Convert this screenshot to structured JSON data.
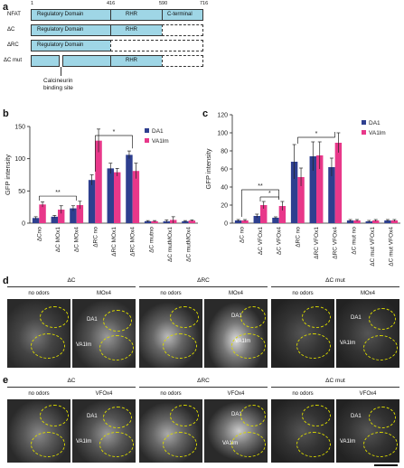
{
  "panels": {
    "a": "a",
    "b": "b",
    "c": "c",
    "d": "d",
    "e": "e"
  },
  "panel_a": {
    "scale": [
      "1",
      "416",
      "590",
      "716"
    ],
    "rows": [
      {
        "label": "NFAT",
        "domains": [
          "Regulatory Domain",
          "RHR",
          "C-terminal"
        ]
      },
      {
        "label": "ΔC",
        "domains": [
          "Regulatory Domain",
          "RHR"
        ]
      },
      {
        "label": "ΔRC",
        "domains": [
          "Regulatory Domain"
        ]
      },
      {
        "label": "ΔC mut",
        "domains": [
          "RHR"
        ]
      }
    ],
    "annotation_line1": "Calcineurin",
    "annotation_line2": "binding site",
    "colors": {
      "domain": "#9fd6e6"
    }
  },
  "chart_data": [
    {
      "panel": "b",
      "type": "bar",
      "ylabel": "GFP intensity",
      "ylim": [
        0,
        150
      ],
      "yticks": [
        0,
        50,
        100,
        150
      ],
      "categories": [
        "ΔCno",
        "ΔC MOx1",
        "ΔC MOx4",
        "ΔRC no",
        "ΔRC MOx1",
        "ΔRC MOx4",
        "ΔC mutno",
        "ΔC mutMOx1",
        "ΔC mutMOx4"
      ],
      "series": [
        {
          "name": "DA1",
          "color": "#2e3f8f",
          "values": [
            8,
            10,
            23,
            67,
            85,
            106,
            3,
            3,
            3
          ],
          "errors": [
            2,
            2,
            4,
            8,
            8,
            6,
            1,
            2,
            1
          ]
        },
        {
          "name": "VA1lm",
          "color": "#e8388a",
          "values": [
            29,
            21,
            28,
            128,
            79,
            81,
            3,
            5,
            4
          ],
          "errors": [
            4,
            6,
            6,
            18,
            6,
            12,
            1,
            5,
            1
          ]
        }
      ],
      "significance": [
        {
          "label": "**"
        },
        {
          "label": "*"
        }
      ],
      "legend": "top-right"
    },
    {
      "panel": "c",
      "type": "bar",
      "ylabel": "GFP intensity",
      "ylim": [
        0,
        120
      ],
      "yticks": [
        0,
        20,
        40,
        60,
        80,
        100,
        120
      ],
      "categories": [
        "ΔC no",
        "ΔC VFOx1",
        "ΔC VFOx4",
        "ΔRC no",
        "ΔRC VFOx1",
        "ΔRC VFOx4",
        "ΔC mut no",
        "ΔC mut VFOx1",
        "ΔC mut VFOx4"
      ],
      "series": [
        {
          "name": "DA1",
          "color": "#2e3f8f",
          "values": [
            3,
            8,
            6,
            68,
            74,
            62,
            3,
            2,
            3
          ],
          "errors": [
            1,
            2,
            1,
            19,
            16,
            10,
            1,
            1,
            1
          ]
        },
        {
          "name": "VA1lm",
          "color": "#e8388a",
          "values": [
            3,
            20,
            19,
            51,
            75,
            89,
            3,
            3,
            3
          ],
          "errors": [
            1,
            4,
            5,
            10,
            15,
            11,
            1,
            1,
            1
          ]
        }
      ],
      "significance": [
        {
          "label": "*"
        },
        {
          "label": "**"
        },
        {
          "label": "*"
        }
      ],
      "legend": "top-right"
    }
  ],
  "panel_d": {
    "groups": [
      "ΔC",
      "ΔRC",
      "ΔC mut"
    ],
    "conditions": [
      [
        "no odors",
        "MOx4"
      ],
      [
        "no odors",
        "MOx4"
      ],
      [
        "no odors",
        "MOx4"
      ]
    ],
    "labels": [
      "DA1",
      "VA1lm"
    ]
  },
  "panel_e": {
    "groups": [
      "ΔC",
      "ΔRC",
      "ΔC mut"
    ],
    "conditions": [
      [
        "no odors",
        "VFOx4"
      ],
      [
        "no odors",
        "VFOx4"
      ],
      [
        "no odors",
        "VFOx4"
      ]
    ],
    "labels": [
      "DA1",
      "VA1lm"
    ]
  }
}
